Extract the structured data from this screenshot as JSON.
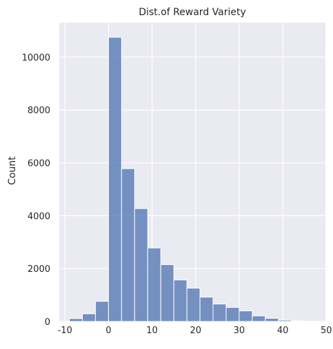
{
  "chart_data": {
    "type": "bar",
    "subtype": "histogram",
    "title": "Dist.of Reward Variety",
    "xlabel": "",
    "ylabel": "Count",
    "xlim": [
      -11.3,
      49.8
    ],
    "ylim": [
      0,
      11300
    ],
    "xticks": [
      -10,
      0,
      10,
      20,
      30,
      40,
      50
    ],
    "yticks": [
      0,
      2000,
      4000,
      6000,
      8000,
      10000
    ],
    "grid": true,
    "bar_color": "#4c72b0",
    "background_color": "#eaeaf2",
    "bins": [
      {
        "x0": -9.0,
        "x1": -6.0,
        "count": 110
      },
      {
        "x0": -6.0,
        "x1": -3.0,
        "count": 290
      },
      {
        "x0": -3.0,
        "x1": 0.0,
        "count": 760
      },
      {
        "x0": 0.0,
        "x1": 3.0,
        "count": 10750
      },
      {
        "x0": 3.0,
        "x1": 6.0,
        "count": 5780
      },
      {
        "x0": 6.0,
        "x1": 9.0,
        "count": 4270
      },
      {
        "x0": 9.0,
        "x1": 12.0,
        "count": 2780
      },
      {
        "x0": 12.0,
        "x1": 15.0,
        "count": 2150
      },
      {
        "x0": 15.0,
        "x1": 18.0,
        "count": 1570
      },
      {
        "x0": 18.0,
        "x1": 21.0,
        "count": 1260
      },
      {
        "x0": 21.0,
        "x1": 24.0,
        "count": 920
      },
      {
        "x0": 24.0,
        "x1": 27.0,
        "count": 660
      },
      {
        "x0": 27.0,
        "x1": 30.0,
        "count": 530
      },
      {
        "x0": 30.0,
        "x1": 33.0,
        "count": 400
      },
      {
        "x0": 33.0,
        "x1": 36.0,
        "count": 210
      },
      {
        "x0": 36.0,
        "x1": 39.0,
        "count": 120
      },
      {
        "x0": 39.0,
        "x1": 42.0,
        "count": 50
      },
      {
        "x0": 42.0,
        "x1": 45.0,
        "count": 20
      },
      {
        "x0": 45.0,
        "x1": 48.0,
        "count": 8
      }
    ]
  }
}
